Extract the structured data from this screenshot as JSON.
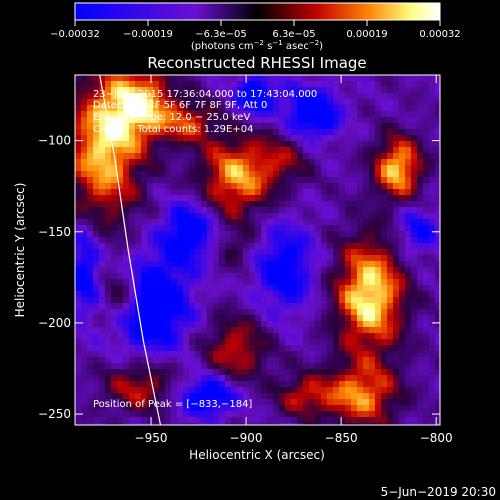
{
  "chart_data": {
    "type": "heatmap",
    "title": "Reconstructed RHESSI Image",
    "xlabel": "Heliocentric X (arcsec)",
    "ylabel": "Heliocentric Y (arcsec)",
    "xlim": [
      -990,
      -798
    ],
    "ylim": [
      -256,
      -64
    ],
    "x_ticks": [
      {
        "value": -950,
        "label": "−950"
      },
      {
        "value": -900,
        "label": "−900"
      },
      {
        "value": -850,
        "label": "−850"
      },
      {
        "value": -800,
        "label": "−800"
      }
    ],
    "y_ticks": [
      {
        "value": -100,
        "label": "−100"
      },
      {
        "value": -150,
        "label": "−150"
      },
      {
        "value": -200,
        "label": "−200"
      },
      {
        "value": -250,
        "label": "−250"
      }
    ],
    "colorbar": {
      "range": [
        -0.00032,
        0.00032
      ],
      "tick_labels": [
        "−0.00032",
        "−0.00019",
        "−6.3e−05",
        "6.3e−05",
        "0.00019",
        "0.00032"
      ],
      "unit_prefix": "(photons cm",
      "unit_sup1": "−2",
      "unit_mid1": " s",
      "unit_sup2": "−1",
      "unit_mid2": " asec",
      "unit_sup3": "−2",
      "unit_suffix": ")",
      "colors": [
        "#0000ff",
        "#6a0fd0",
        "#000000",
        "#c00000",
        "#ff8000",
        "#ffff80",
        "#ffffff"
      ]
    },
    "annotations": {
      "time": "23−Jan−2015 17:36:04.000 to 17:43:04.000",
      "detectors": "Detectors: 3F 5F 6F 7F 8F 9F, Att 0",
      "energy": "Energy Range: 12.0 − 25.0 keV",
      "clean": "Clean     Total counts: 1.29E+04",
      "peak": "Position of Peak = [−833,−184]"
    },
    "peak_position": [
      -833,
      -184
    ],
    "limb_curve": [
      [
        -977,
        -64
      ],
      [
        -969,
        -110
      ],
      [
        -962,
        -160
      ],
      [
        -954,
        -210
      ],
      [
        -945,
        -256
      ]
    ],
    "hotspots": [
      {
        "x": -975,
        "y": -105,
        "v": 0.9,
        "sx": 14,
        "sy": 28
      },
      {
        "x": -955,
        "y": -80,
        "v": 0.85,
        "sx": 12,
        "sy": 14
      },
      {
        "x": -930,
        "y": -90,
        "v": 0.55,
        "sx": 10,
        "sy": 8
      },
      {
        "x": -905,
        "y": -120,
        "v": 0.8,
        "sx": 14,
        "sy": 16
      },
      {
        "x": -880,
        "y": -110,
        "v": 0.35,
        "sx": 10,
        "sy": 10
      },
      {
        "x": -835,
        "y": -185,
        "v": 1.0,
        "sx": 13,
        "sy": 22
      },
      {
        "x": -820,
        "y": -115,
        "v": 0.9,
        "sx": 9,
        "sy": 12
      },
      {
        "x": -840,
        "y": -240,
        "v": 0.75,
        "sx": 14,
        "sy": 12
      },
      {
        "x": -870,
        "y": -240,
        "v": 0.5,
        "sx": 10,
        "sy": 8
      },
      {
        "x": -965,
        "y": -185,
        "v": 0.6,
        "sx": 8,
        "sy": 10
      },
      {
        "x": -955,
        "y": -235,
        "v": 0.55,
        "sx": 14,
        "sy": 10
      },
      {
        "x": -905,
        "y": -215,
        "v": 0.55,
        "sx": 12,
        "sy": 14
      },
      {
        "x": -905,
        "y": -160,
        "v": 0.3,
        "sx": 8,
        "sy": 8
      }
    ],
    "coldspots": [
      {
        "x": -950,
        "y": -190,
        "v": -0.9,
        "sx": 14,
        "sy": 18
      },
      {
        "x": -930,
        "y": -150,
        "v": -0.7,
        "sx": 10,
        "sy": 12
      },
      {
        "x": -865,
        "y": -85,
        "v": -0.8,
        "sx": 10,
        "sy": 10
      },
      {
        "x": -880,
        "y": -170,
        "v": -0.6,
        "sx": 12,
        "sy": 18
      },
      {
        "x": -920,
        "y": -240,
        "v": -0.75,
        "sx": 12,
        "sy": 8
      },
      {
        "x": -810,
        "y": -150,
        "v": -0.5,
        "sx": 8,
        "sy": 10
      },
      {
        "x": -985,
        "y": -170,
        "v": -0.6,
        "sx": 6,
        "sy": 18
      },
      {
        "x": -895,
        "y": -75,
        "v": -0.7,
        "sx": 8,
        "sy": 8
      }
    ]
  },
  "footer": {
    "date": "5−Jun−2019 20:30"
  }
}
